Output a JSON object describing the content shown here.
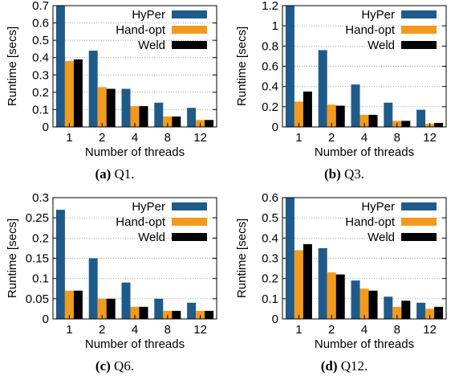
{
  "colors": {
    "HyPer": "#1f5b8a",
    "Hand-opt": "#f39a1e",
    "Weld": "#000000"
  },
  "chart_data": [
    {
      "type": "bar",
      "caption_label": "(a)",
      "caption_text": "Q1.",
      "categories": [
        "1",
        "2",
        "4",
        "8",
        "12"
      ],
      "xlabel": "Number of threads",
      "ylabel": "Runtime [secs]",
      "ylim": [
        0,
        0.7
      ],
      "yticks": [
        "0",
        "0.1",
        "0.2",
        "0.3",
        "0.4",
        "0.5",
        "0.6",
        "0.7"
      ],
      "ytick_values": [
        0,
        0.1,
        0.2,
        0.3,
        0.4,
        0.5,
        0.6,
        0.7
      ],
      "legend_position": "top-right",
      "series": [
        {
          "name": "HyPer",
          "values": [
            0.7,
            0.44,
            0.22,
            0.14,
            0.11
          ]
        },
        {
          "name": "Hand-opt",
          "values": [
            0.38,
            0.23,
            0.12,
            0.06,
            0.04
          ]
        },
        {
          "name": "Weld",
          "values": [
            0.39,
            0.22,
            0.12,
            0.06,
            0.04
          ]
        }
      ]
    },
    {
      "type": "bar",
      "caption_label": "(b)",
      "caption_text": "Q3.",
      "categories": [
        "1",
        "2",
        "4",
        "8",
        "12"
      ],
      "xlabel": "Number of threads",
      "ylabel": "Runtime [secs]",
      "ylim": [
        0,
        1.2
      ],
      "yticks": [
        "0",
        "0.2",
        "0.4",
        "0.6",
        "0.8",
        "1",
        "1.2"
      ],
      "ytick_values": [
        0,
        0.2,
        0.4,
        0.6,
        0.8,
        1.0,
        1.2
      ],
      "legend_position": "top-right",
      "series": [
        {
          "name": "HyPer",
          "values": [
            1.2,
            0.76,
            0.42,
            0.24,
            0.17
          ]
        },
        {
          "name": "Hand-opt",
          "values": [
            0.25,
            0.22,
            0.12,
            0.06,
            0.03
          ]
        },
        {
          "name": "Weld",
          "values": [
            0.35,
            0.21,
            0.12,
            0.06,
            0.04
          ]
        }
      ]
    },
    {
      "type": "bar",
      "caption_label": "(c)",
      "caption_text": "Q6.",
      "categories": [
        "1",
        "2",
        "4",
        "8",
        "12"
      ],
      "xlabel": "Number of threads",
      "ylabel": "Runtime [secs]",
      "ylim": [
        0,
        0.3
      ],
      "yticks": [
        "0",
        "0.05",
        "0.1",
        "0.15",
        "0.2",
        "0.25",
        "0.3"
      ],
      "ytick_values": [
        0,
        0.05,
        0.1,
        0.15,
        0.2,
        0.25,
        0.3
      ],
      "legend_position": "top-right",
      "series": [
        {
          "name": "HyPer",
          "values": [
            0.27,
            0.15,
            0.09,
            0.05,
            0.04
          ]
        },
        {
          "name": "Hand-opt",
          "values": [
            0.07,
            0.05,
            0.03,
            0.02,
            0.02
          ]
        },
        {
          "name": "Weld",
          "values": [
            0.07,
            0.05,
            0.03,
            0.02,
            0.02
          ]
        }
      ]
    },
    {
      "type": "bar",
      "caption_label": "(d)",
      "caption_text": "Q12.",
      "categories": [
        "1",
        "2",
        "4",
        "8",
        "12"
      ],
      "xlabel": "Number of threads",
      "ylabel": "Runtime [secs]",
      "ylim": [
        0,
        0.6
      ],
      "yticks": [
        "0",
        "0.1",
        "0.2",
        "0.3",
        "0.4",
        "0.5",
        "0.6"
      ],
      "ytick_values": [
        0,
        0.1,
        0.2,
        0.3,
        0.4,
        0.5,
        0.6
      ],
      "legend_position": "top-right",
      "series": [
        {
          "name": "HyPer",
          "values": [
            0.62,
            0.35,
            0.19,
            0.11,
            0.08
          ]
        },
        {
          "name": "Hand-opt",
          "values": [
            0.34,
            0.23,
            0.15,
            0.06,
            0.05
          ]
        },
        {
          "name": "Weld",
          "values": [
            0.37,
            0.22,
            0.14,
            0.09,
            0.06
          ]
        }
      ]
    }
  ]
}
